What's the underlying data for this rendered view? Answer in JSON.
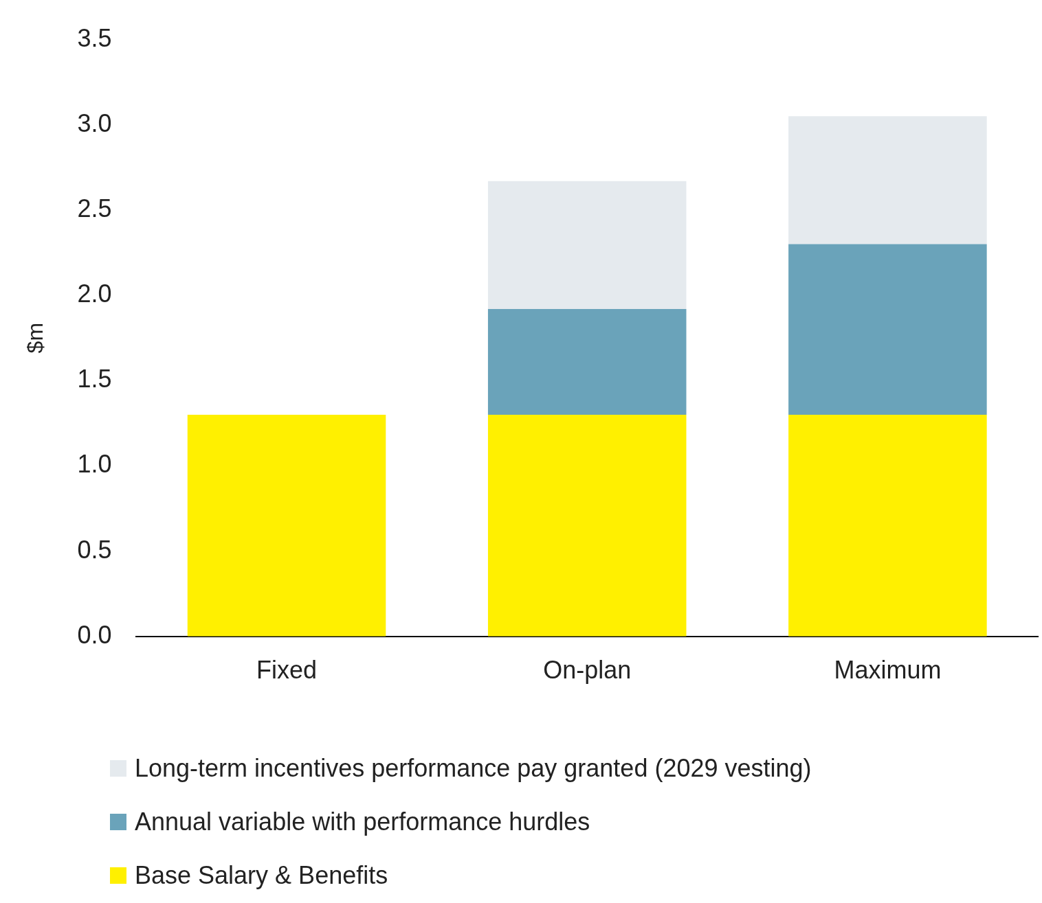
{
  "chart_data": {
    "type": "bar",
    "stacked": true,
    "ylabel": "$m",
    "categories": [
      "Fixed",
      "On-plan",
      "Maximum"
    ],
    "series": [
      {
        "name": "Base Salary & Benefits",
        "color": "#fff000",
        "values": [
          1.3,
          1.3,
          1.3
        ]
      },
      {
        "name": "Annual variable with performance hurdles",
        "color": "#6aa3ba",
        "values": [
          null,
          0.62,
          1.0
        ]
      },
      {
        "name": "Long-term incentives performance pay granted (2029 vesting)",
        "color": "#e5eaee",
        "values": [
          null,
          0.75,
          0.75
        ]
      }
    ],
    "ylim": [
      0,
      3.5
    ],
    "yticks": [
      {
        "value": 0,
        "label": "0.0"
      },
      {
        "value": 0.5,
        "label": "0.5"
      },
      {
        "value": 1,
        "label": "1.0"
      },
      {
        "value": 1.5,
        "label": "1.5"
      },
      {
        "value": 2,
        "label": "2.0"
      },
      {
        "value": 2.5,
        "label": "2.5"
      },
      {
        "value": 3,
        "label": "3.0"
      },
      {
        "value": 3.5,
        "label": "3.5"
      }
    ],
    "grid": false,
    "legend": "bottom"
  }
}
